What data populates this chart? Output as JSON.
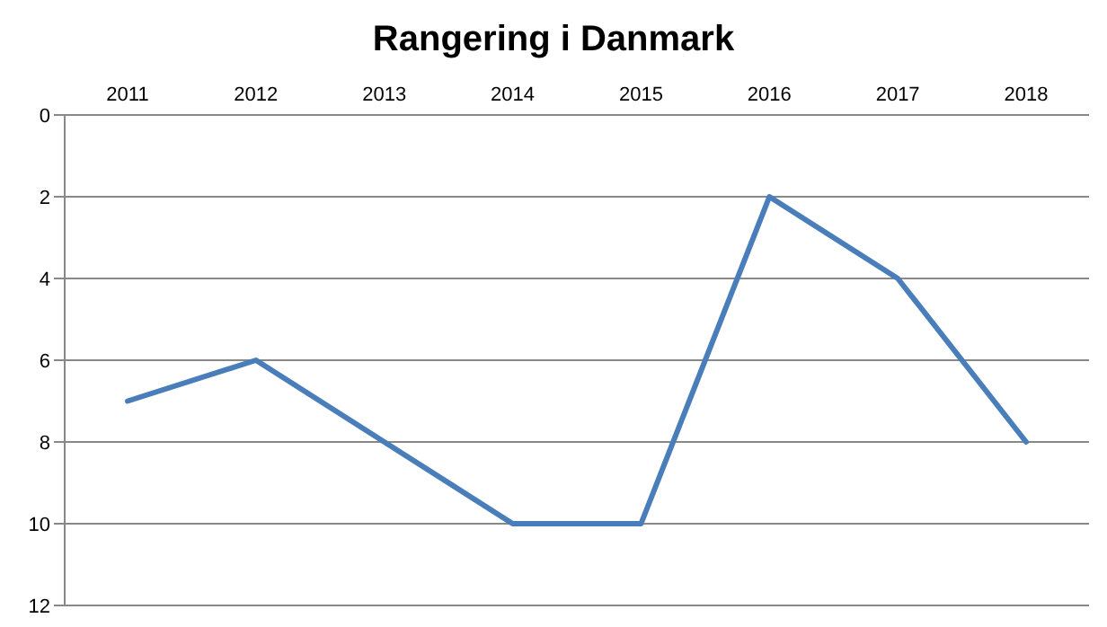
{
  "chart_data": {
    "type": "line",
    "title": "Rangering i Danmark",
    "categories": [
      "2011",
      "2012",
      "2013",
      "2014",
      "2015",
      "2016",
      "2017",
      "2018"
    ],
    "series": [
      {
        "color": "#4a7ebb",
        "values": [
          7,
          6,
          8,
          10,
          10,
          2,
          4,
          8
        ]
      }
    ],
    "ylim": [
      12,
      0
    ],
    "yticks": [
      0,
      2,
      4,
      6,
      8,
      10,
      12
    ],
    "grid": "y",
    "legend": false,
    "marker": "none",
    "line_style": "solid"
  }
}
